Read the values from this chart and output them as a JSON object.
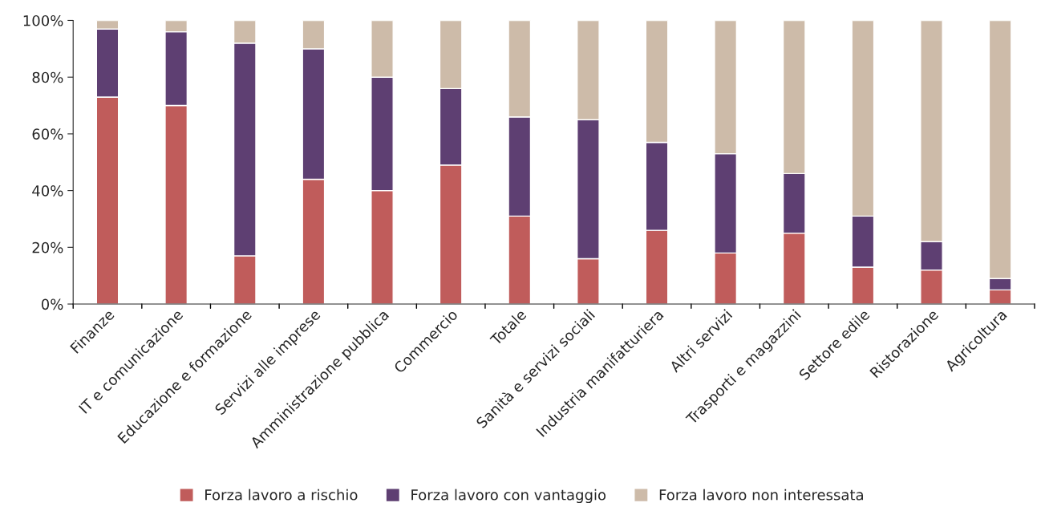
{
  "chart_data": {
    "type": "bar",
    "stacked": true,
    "categories": [
      "Finanze",
      "IT e comunicazione",
      "Educazione e formazione",
      "Servizi alle imprese",
      "Amministrazione pubblica",
      "Commercio",
      "Totale",
      "Sanità e servizi sociali",
      "Industria manifatturiera",
      "Altri servizi",
      "Trasporti e magazzini",
      "Settore edile",
      "Ristorazione",
      "Agricoltura"
    ],
    "series": [
      {
        "name": "Forza lavoro a rischio",
        "color": "#c05c5b",
        "values": [
          73,
          70,
          17,
          44,
          40,
          49,
          31,
          16,
          26,
          18,
          25,
          13,
          12,
          5
        ]
      },
      {
        "name": "Forza lavoro con vantaggio",
        "color": "#5e3f72",
        "values": [
          24,
          26,
          75,
          46,
          40,
          27,
          35,
          49,
          31,
          35,
          21,
          18,
          10,
          4
        ]
      },
      {
        "name": "Forza lavoro non interessata",
        "color": "#cdbba9",
        "values": [
          3,
          4,
          8,
          10,
          20,
          24,
          34,
          35,
          43,
          47,
          54,
          69,
          78,
          91
        ]
      }
    ],
    "ylim": [
      0,
      100
    ],
    "yticks": [
      {
        "value": 0,
        "label": "0%"
      },
      {
        "value": 20,
        "label": "20%"
      },
      {
        "value": 40,
        "label": "40%"
      },
      {
        "value": 60,
        "label": "60%"
      },
      {
        "value": 80,
        "label": "80%"
      },
      {
        "value": 100,
        "label": "100%"
      }
    ],
    "grid": false,
    "legend": "bottom"
  }
}
